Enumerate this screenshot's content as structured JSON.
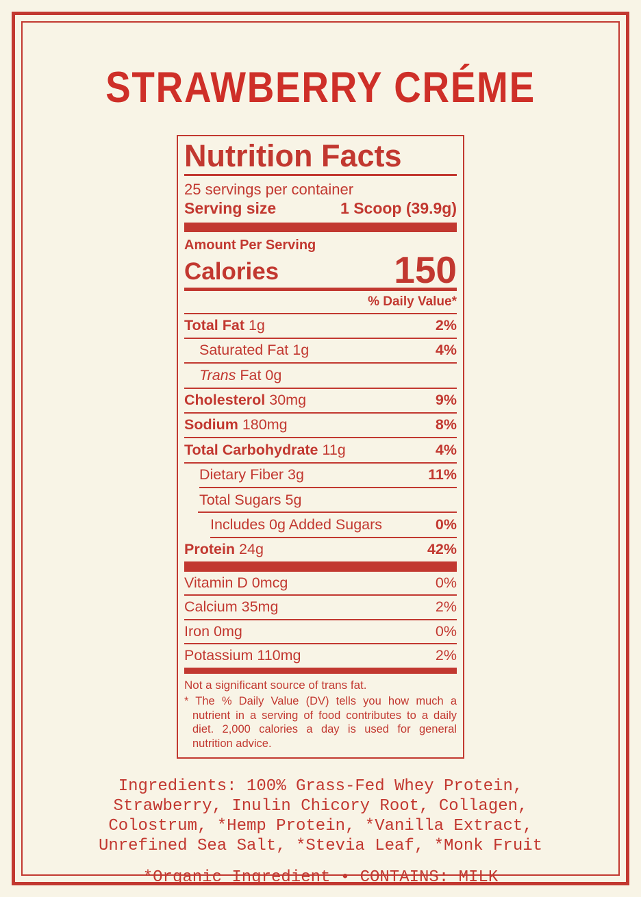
{
  "colors": {
    "red": "#c23830",
    "title_red": "#ce2f28",
    "background": "#f8f4e6"
  },
  "title": "STRAWBERRY CRÉME",
  "nutrition": {
    "header": "Nutrition Facts",
    "servings_per_container": "25 servings per container",
    "serving_size_label": "Serving size",
    "serving_size_value": "1 Scoop (39.9g)",
    "amount_per_serving": "Amount Per Serving",
    "calories_label": "Calories",
    "calories_value": "150",
    "daily_value_header": "% Daily Value*",
    "rows": [
      {
        "name": "Total Fat",
        "amount": "1g",
        "percent": "2%",
        "bold": true,
        "percent_bold": true,
        "indent": 0
      },
      {
        "name": "Saturated Fat",
        "amount": "1g",
        "percent": "4%",
        "bold": false,
        "percent_bold": true,
        "indent": 1
      },
      {
        "name": "Trans",
        "suffix": "Fat",
        "amount": "0g",
        "percent": "",
        "bold": false,
        "italic": true,
        "indent": 1
      },
      {
        "name": "Cholesterol",
        "amount": "30mg",
        "percent": "9%",
        "bold": true,
        "percent_bold": true,
        "indent": 0
      },
      {
        "name": "Sodium",
        "amount": "180mg",
        "percent": "8%",
        "bold": true,
        "percent_bold": true,
        "indent": 0
      },
      {
        "name": "Total Carbohydrate",
        "amount": "11g",
        "percent": "4%",
        "bold": true,
        "percent_bold": true,
        "indent": 0
      },
      {
        "name": "Dietary Fiber",
        "amount": "3g",
        "percent": "11%",
        "bold": false,
        "percent_bold": true,
        "indent": 1
      },
      {
        "name": "Total Sugars",
        "amount": "5g",
        "percent": "",
        "bold": false,
        "indent": 1,
        "rule_indent": 22
      },
      {
        "name": "Includes 0g Added Sugars",
        "amount": "",
        "percent": "0%",
        "bold": false,
        "percent_bold": true,
        "indent": 2,
        "rule_indent": 20
      },
      {
        "name": "Protein",
        "amount": "24g",
        "percent": "42%",
        "bold": true,
        "percent_bold": true,
        "indent": 0,
        "rule_indent": 38
      }
    ],
    "vitamins": [
      {
        "name": "Vitamin D",
        "amount": "0mcg",
        "percent": "0%",
        "bold": false,
        "percent_bold": false,
        "indent": 0
      },
      {
        "name": "Calcium",
        "amount": "35mg",
        "percent": "2%",
        "bold": false,
        "percent_bold": false,
        "indent": 0
      },
      {
        "name": "Iron",
        "amount": "0mg",
        "percent": "0%",
        "bold": false,
        "percent_bold": false,
        "indent": 0
      },
      {
        "name": "Potassium",
        "amount": "110mg",
        "percent": "2%",
        "bold": false,
        "percent_bold": false,
        "indent": 0
      }
    ],
    "footnote_trans": "Not a significant source of trans fat.",
    "footnote_dv": "* The % Daily Value (DV) tells you how much a nutrient in a serving of food contributes to a daily diet. 2,000 calories a day is used for general nutrition advice."
  },
  "ingredients_lines": [
    "Ingredients: 100% Grass-Fed Whey Protein,",
    "Strawberry, Inulin Chicory Root, Collagen,",
    "Colostrum, *Hemp Protein, *Vanilla Extract,",
    "Unrefined Sea Salt, *Stevia Leaf, *Monk Fruit"
  ],
  "footer": "*Organic Ingredient • CONTAINS: MILK"
}
